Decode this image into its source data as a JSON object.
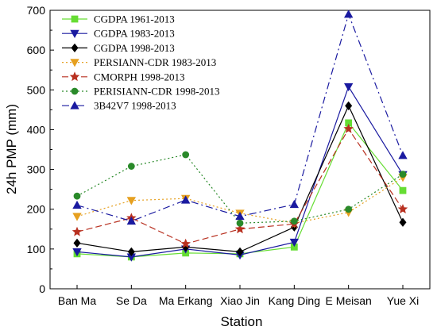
{
  "chart_data": {
    "type": "line",
    "xlabel": "Station",
    "ylabel": "24h PMP (mm)",
    "ylim": [
      0,
      700
    ],
    "yticks": [
      0,
      100,
      200,
      300,
      400,
      500,
      600,
      700
    ],
    "grid": false,
    "legend_position": "top-left",
    "categories": [
      "Ban Ma",
      "Se Da",
      "Ma Erkang",
      "Xiao Jin",
      "Kang Ding",
      "E Meisan",
      "Yue Xi"
    ],
    "series": [
      {
        "name": "CGDPA 1961-2013",
        "color": "#66dd33",
        "marker": "square",
        "dash": "",
        "values": [
          88,
          80,
          90,
          88,
          105,
          417,
          247
        ]
      },
      {
        "name": "CGDPA 1983-2013",
        "color": "#1a1aa0",
        "marker": "triangle-down",
        "dash": "",
        "values": [
          93,
          80,
          100,
          85,
          117,
          508,
          287
        ]
      },
      {
        "name": "CGDPA  1998-2013",
        "color": "#000000",
        "marker": "diamond",
        "dash": "",
        "values": [
          115,
          93,
          105,
          93,
          155,
          460,
          167
        ]
      },
      {
        "name": "PERSIANN-CDR 1983-2013",
        "color": "#e6a020",
        "marker": "triangle-down",
        "dash": "2,3",
        "values": [
          182,
          222,
          227,
          190,
          165,
          192,
          280
        ]
      },
      {
        "name": "CMORPH 1998-2013",
        "color": "#b83020",
        "marker": "star",
        "dash": "8,4",
        "values": [
          143,
          178,
          113,
          150,
          163,
          402,
          200
        ]
      },
      {
        "name": "PERISIANN-CDR 1998-2013",
        "color": "#2a8a2a",
        "marker": "circle",
        "dash": "2,3",
        "values": [
          233,
          308,
          337,
          165,
          170,
          200,
          288
        ]
      },
      {
        "name": "3B42V7 1998-2013",
        "color": "#1a1aa0",
        "marker": "triangle-up",
        "dash": "9,4,2,4",
        "values": [
          210,
          170,
          223,
          182,
          212,
          690,
          335
        ]
      }
    ]
  }
}
